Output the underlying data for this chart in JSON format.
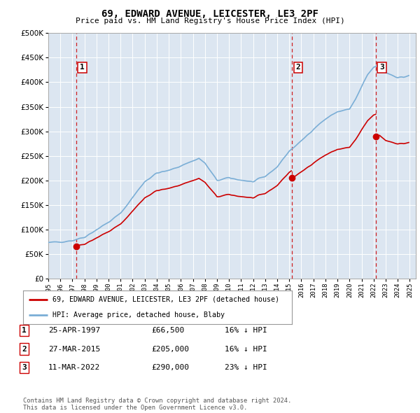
{
  "title": "69, EDWARD AVENUE, LEICESTER, LE3 2PF",
  "subtitle": "Price paid vs. HM Land Registry's House Price Index (HPI)",
  "background_color": "#ffffff",
  "plot_bg_color": "#dce6f1",
  "grid_color": "#ffffff",
  "sale_color": "#cc0000",
  "hpi_color": "#7aaed6",
  "ylim": [
    0,
    500000
  ],
  "yticks": [
    0,
    50000,
    100000,
    150000,
    200000,
    250000,
    300000,
    350000,
    400000,
    450000,
    500000
  ],
  "ytick_labels": [
    "£0",
    "£50K",
    "£100K",
    "£150K",
    "£200K",
    "£250K",
    "£300K",
    "£350K",
    "£400K",
    "£450K",
    "£500K"
  ],
  "xmin": 1995.0,
  "xmax": 2025.5,
  "sales": [
    {
      "year": 1997.32,
      "price": 66500,
      "label": "1"
    },
    {
      "year": 2015.24,
      "price": 205000,
      "label": "2"
    },
    {
      "year": 2022.19,
      "price": 290000,
      "label": "3"
    }
  ],
  "transactions": [
    {
      "num": "1",
      "date": "25-APR-1997",
      "price": "£66,500",
      "hpi": "16% ↓ HPI"
    },
    {
      "num": "2",
      "date": "27-MAR-2015",
      "price": "£205,000",
      "hpi": "16% ↓ HPI"
    },
    {
      "num": "3",
      "date": "11-MAR-2022",
      "price": "£290,000",
      "hpi": "23% ↓ HPI"
    }
  ],
  "legend_entries": [
    "69, EDWARD AVENUE, LEICESTER, LE3 2PF (detached house)",
    "HPI: Average price, detached house, Blaby"
  ],
  "footer": "Contains HM Land Registry data © Crown copyright and database right 2024.\nThis data is licensed under the Open Government Licence v3.0."
}
